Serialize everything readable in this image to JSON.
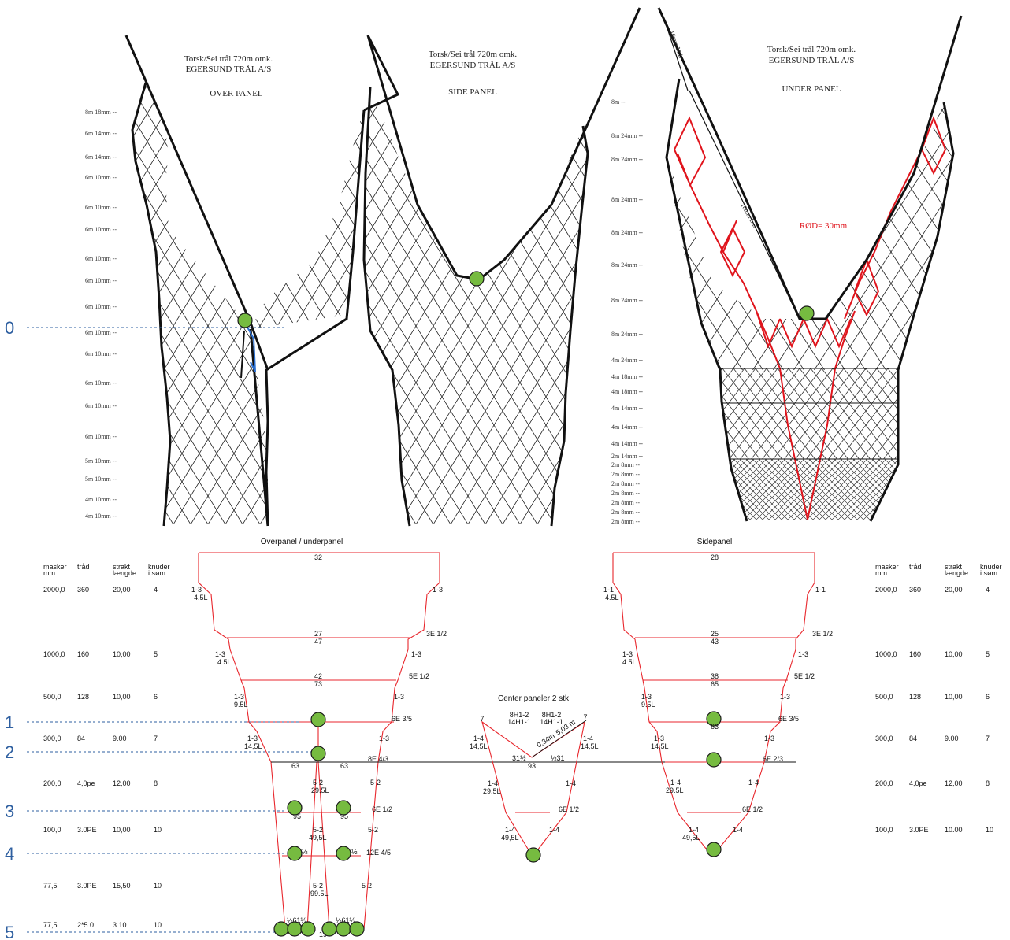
{
  "top_panels": {
    "over": {
      "title1": "Torsk/Sei trål 720m omk.",
      "title2": "EGERSUND TRÅL A/S",
      "title3": "OVER PANEL"
    },
    "side": {
      "title1": "Torsk/Sei trål 720m omk.",
      "title2": "EGERSUND TRÅL A/S",
      "title3": "SIDE PANEL"
    },
    "under": {
      "title1": "Torsk/Sei trål 720m omk.",
      "title2": "EGERSUND TRÅL A/S",
      "title3": "UNDER PANEL",
      "red_note": "RØD= 30mm",
      "lt_label": "16mm L.L",
      "ml_label": "16mm M.L"
    }
  },
  "left_scale": [
    "8m 18mm",
    "6m 14mm",
    "6m 14mm",
    "6m 10mm",
    "6m 10mm",
    "6m 10mm",
    "6m 10mm",
    "6m 10mm",
    "6m 10mm",
    "6m 10mm",
    "6m 10mm",
    "6m 10mm",
    "6m 10mm",
    "6m 10mm",
    "5m 10mm",
    "5m 10mm",
    "4m 10mm",
    "4m 10mm"
  ],
  "right_scale": [
    "8m",
    "8m 24mm",
    "8m 24mm",
    "8m 24mm",
    "8m 24mm",
    "8m 24mm",
    "8m 24mm",
    "8m 24mm",
    "4m 24mm",
    "4m 18mm",
    "4m 18mm",
    "4m 14mm",
    "4m 14mm",
    "4m 14mm",
    "2m 14mm",
    "2m 8mm",
    "2m 8mm",
    "2m 8mm",
    "2m 8mm",
    "2m 8mm",
    "2m 8mm",
    "2m 8mm"
  ],
  "levels": [
    "0",
    "1",
    "2",
    "3",
    "4",
    "5"
  ],
  "bottom": {
    "overpanel_title": "Overpanel / underpanel",
    "sidepanel_title": "Sidepanel",
    "center_title": "Center paneler 2 stk",
    "table": {
      "headers": [
        "masker",
        "mm",
        "tråd",
        "strakt",
        "længde",
        "knuder",
        "i søm"
      ],
      "rows": [
        [
          "2000,0",
          "360",
          "20,00",
          "4"
        ],
        [
          "1000,0",
          "160",
          "10,00",
          "5"
        ],
        [
          "500,0",
          "128",
          "10,00",
          "6"
        ],
        [
          "300,0",
          "84",
          "9.00",
          "7"
        ],
        [
          "200,0",
          "4,0pe",
          "12,00",
          "8"
        ],
        [
          "100,0",
          "3.0PE",
          "10,00",
          "10"
        ],
        [
          "77,5",
          "3.0PE",
          "15,50",
          "10"
        ],
        [
          "77,5",
          "2*5.0",
          "3.10",
          "10"
        ]
      ],
      "right_rows": [
        [
          "2000,0",
          "360",
          "20,00",
          "4"
        ],
        [
          "1000,0",
          "160",
          "10,00",
          "5"
        ],
        [
          "500,0",
          "128",
          "10,00",
          "6"
        ],
        [
          "300,0",
          "84",
          "9.00",
          "7"
        ],
        [
          "200,0",
          "4,0pe",
          "12,00",
          "8"
        ],
        [
          "100,0",
          "3.0PE",
          "10.00",
          "10"
        ]
      ]
    },
    "over_labels": {
      "n32": "32",
      "n27": "27",
      "n47": "47",
      "n42": "42",
      "n73": "73",
      "n63a": "63",
      "n63b": "63",
      "n95a": "95",
      "n95b": "95",
      "n19": "19",
      "cut1": "1-3",
      "cut1b": "4.5L",
      "cut1r": "1-3",
      "cut2": "1-3",
      "cut2b": "4.5L",
      "cut2r": "1-3",
      "cut3": "1-3",
      "cut3b": "9.5L",
      "cut3r": "1-3",
      "cut4": "1-3",
      "cut4b": "14,5L",
      "cut4r": "1-3",
      "e1": "3E 1/2",
      "e2": "5E 1/2",
      "e3": "6E 3/5",
      "e4": "8E 4/3",
      "e5": "6E 1/2",
      "e6": "12E 4/5",
      "c52a": "5-2",
      "c52b": "29.5L",
      "c52r": "5-2",
      "c52c": "5-2",
      "c52d": "49,5L",
      "c52r2": "5-2",
      "c52e": "5-2",
      "c52f": "99.5L",
      "c52r3": "5-2",
      "half1": "½",
      "half2": "½",
      "bot1": "½61½",
      "bot2": "½61½"
    },
    "side_labels": {
      "n28": "28",
      "n25": "25",
      "n43": "43",
      "n38": "38",
      "n65": "65",
      "n63": "63",
      "cut1": "1-1",
      "cut1b": "4.5L",
      "cut1r": "1-1",
      "cut2": "1-3",
      "cut2b": "4.5L",
      "cut2r": "1-3",
      "cut3": "1-3",
      "cut3b": "9.5L",
      "cut3r": "1-3",
      "cut4": "1-3",
      "cut4b": "14,5L",
      "cut4r": "1-3",
      "e1": "3E 1/2",
      "e2": "5E 1/2",
      "e3": "6E 3/5",
      "e4": "6E 2/3",
      "e5": "6E 1/2",
      "c14a": "1-4",
      "c14b": "29.5L",
      "c14r": "1-4",
      "c14c": "1-4",
      "c14d": "49,5L",
      "c14r2": "1-4"
    },
    "center_labels": {
      "h1": "8H1-2",
      "h2": "14H1-1",
      "h3": "8H1-2",
      "h4": "14H1-1",
      "seven_l": "7",
      "seven_r": "7",
      "l1": "1-4",
      "l1b": "14,5L",
      "r1": "1-4",
      "r1b": "14,5L",
      "mid1": "31½",
      "mid2": "½31",
      "n93": "93",
      "m1": "0,34m",
      "m2": "5,03 m",
      "l2": "1-4",
      "l2b": "29.5L",
      "r2": "1-4",
      "e1": "6E 1/2",
      "l3": "1-4",
      "l3b": "49,5L",
      "r3": "1-4"
    }
  },
  "colors": {
    "marker": "#76bb40",
    "pattern_red": "#e8262c",
    "level_blue": "#2e5fa0"
  }
}
